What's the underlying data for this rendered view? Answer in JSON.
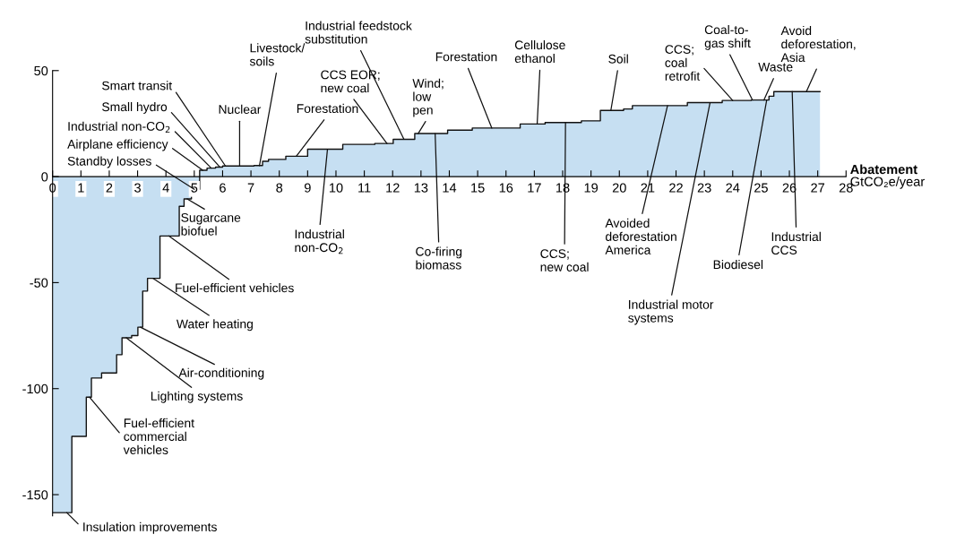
{
  "chart_data": {
    "type": "area",
    "xlabel": "Abatement\nGtCO₂e/year",
    "x": [
      0,
      0.68,
      1.19,
      1.37,
      1.73,
      2.26,
      2.45,
      2.79,
      3.01,
      3.18,
      3.35,
      3.79,
      4.47,
      4.64,
      4.9,
      5.19,
      5.45,
      5.75,
      6.0,
      7.11,
      7.41,
      7.62,
      8.23,
      9.0,
      10.24,
      11.37,
      12.02,
      12.78,
      13.94,
      14.81,
      16.5,
      17.38,
      18.66,
      19.33,
      20.15,
      20.46,
      22.4,
      23.63,
      24.65,
      25.28,
      25.45,
      27.08
    ],
    "values": [
      -158.5,
      -122.5,
      -104,
      -95,
      -92.6,
      -84,
      -76,
      -75,
      -71,
      -54,
      -48,
      -28,
      -14,
      -10.5,
      -6,
      3,
      4,
      4.5,
      5,
      5.2,
      7.2,
      8.1,
      9.6,
      12.9,
      15.2,
      15.6,
      17.6,
      20.3,
      21.9,
      22.9,
      24.8,
      25.5,
      26.3,
      31.2,
      31.9,
      33.5,
      34.9,
      35.9,
      36.1,
      37.9,
      40.1,
      40.1
    ],
    "color": "#c6dff2",
    "xlim": [
      0,
      28
    ],
    "xticks": [
      0,
      1,
      2,
      3,
      4,
      5,
      6,
      7,
      8,
      9,
      10,
      11,
      12,
      13,
      14,
      15,
      16,
      17,
      18,
      19,
      20,
      21,
      22,
      23,
      24,
      25,
      26,
      27,
      28
    ],
    "ylim": [
      -160,
      50
    ],
    "yticks": [
      50,
      0,
      -50,
      -100,
      -150
    ],
    "annotations": [
      {
        "text": "Insulation improvements",
        "x": 0.5,
        "y": -158.5
      },
      {
        "text": "Fuel-efficient\ncommercial\nvehicles",
        "x": 1.3,
        "y": -104
      },
      {
        "text": "Lighting systems",
        "x": 2.6,
        "y": -76
      },
      {
        "text": "Air-conditioning",
        "x": 3.1,
        "y": -71
      },
      {
        "text": "Water heating",
        "x": 3.55,
        "y": -48
      },
      {
        "text": "Fuel-efficient vehicles",
        "x": 4.1,
        "y": -28
      },
      {
        "text": "Sugarcane\nbiofuel",
        "x": 4.75,
        "y": -10.5
      },
      {
        "text": "Standby losses",
        "x": 5.0,
        "y": -6
      },
      {
        "text": "Airplane efficiency",
        "x": 5.3,
        "y": 3
      },
      {
        "text": "Industrial non-CO$_{2}$",
        "x": 5.6,
        "y": 4
      },
      {
        "text": "Small hydro",
        "x": 5.9,
        "y": 4.5
      },
      {
        "text": "Smart transit",
        "x": 6.1,
        "y": 5
      },
      {
        "text": "Nuclear",
        "x": 6.6,
        "y": 5
      },
      {
        "text": "Livestock/\nsoils",
        "x": 7.3,
        "y": 5.2
      },
      {
        "text": "Forestation",
        "x": 8.6,
        "y": 9.6
      },
      {
        "text": "CCS EOR;\nnew coal",
        "x": 11.8,
        "y": 15.6
      },
      {
        "text": "Industrial feedstock\nsubstitution",
        "x": 12.4,
        "y": 17.6
      },
      {
        "text": "Wind;\nlow\npen",
        "x": 12.9,
        "y": 20.3
      },
      {
        "text": "Forestation",
        "x": 15.5,
        "y": 22.9
      },
      {
        "text": "Cellulose\nethanol",
        "x": 17.1,
        "y": 24.8
      },
      {
        "text": "Soil",
        "x": 19.7,
        "y": 31.2
      },
      {
        "text": "CCS;\ncoal\nretrofit",
        "x": 24.0,
        "y": 35.9
      },
      {
        "text": "Coal-to-\ngas shift",
        "x": 24.7,
        "y": 36.1
      },
      {
        "text": "Waste",
        "x": 25.1,
        "y": 36.1
      },
      {
        "text": "Avoid\ndeforestation,\nAsia",
        "x": 26.6,
        "y": 40.1
      },
      {
        "text": "Industrial\nnon-CO$_{2}$",
        "x": 9.7,
        "y": 12.9
      },
      {
        "text": "Co-firing\nbiomass",
        "x": 13.5,
        "y": 20.3
      },
      {
        "text": "CCS;\nnew coal",
        "x": 18.1,
        "y": 25.5
      },
      {
        "text": "Avoided\ndeforestation\nAmerica",
        "x": 21.7,
        "y": 33.5
      },
      {
        "text": "Industrial motor\nsystems",
        "x": 23.2,
        "y": 34.9
      },
      {
        "text": "Biodiesel",
        "x": 25.2,
        "y": 36.1
      },
      {
        "text": "Industrial\nCCS",
        "x": 26.1,
        "y": 40.1
      }
    ]
  }
}
